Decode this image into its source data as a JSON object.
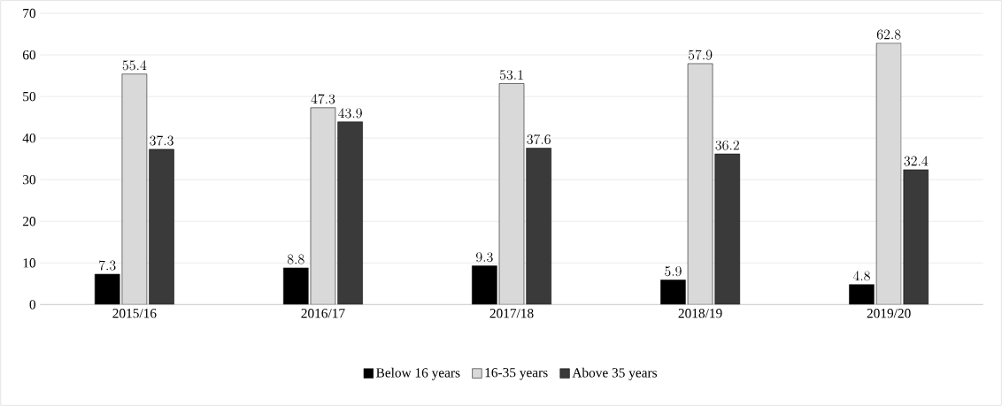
{
  "chart_data": {
    "type": "bar",
    "categories": [
      "2015/16",
      "2016/17",
      "2017/18",
      "2018/19",
      "2019/20"
    ],
    "series": [
      {
        "name": "Below 16 years",
        "color": "#000000",
        "values": [
          7.3,
          8.8,
          9.3,
          5.9,
          4.8
        ]
      },
      {
        "name": "16-35 years",
        "color": "#d9d9d9",
        "values": [
          55.4,
          47.3,
          53.1,
          57.9,
          62.8
        ]
      },
      {
        "name": "Above 35 years",
        "color": "#3a3a3a",
        "values": [
          37.3,
          43.9,
          37.6,
          36.2,
          32.4
        ]
      }
    ],
    "ylim": [
      0,
      70
    ],
    "yticks": [
      0,
      10,
      20,
      30,
      40,
      50,
      60,
      70
    ],
    "grid": "y",
    "legend": "bottom",
    "data_labels": true
  }
}
